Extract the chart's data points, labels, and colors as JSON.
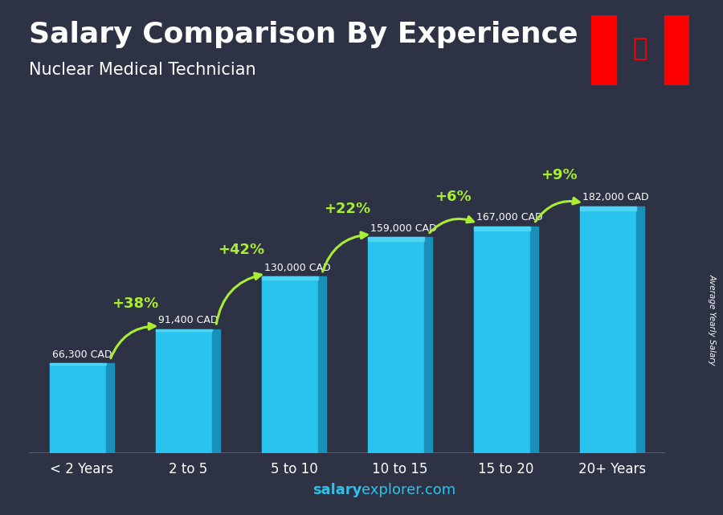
{
  "title": "Salary Comparison By Experience",
  "subtitle": "Nuclear Medical Technician",
  "categories": [
    "< 2 Years",
    "2 to 5",
    "5 to 10",
    "10 to 15",
    "15 to 20",
    "20+ Years"
  ],
  "values": [
    66300,
    91400,
    130000,
    159000,
    167000,
    182000
  ],
  "labels": [
    "66,300 CAD",
    "91,400 CAD",
    "130,000 CAD",
    "159,000 CAD",
    "167,000 CAD",
    "182,000 CAD"
  ],
  "pct_changes": [
    "+38%",
    "+42%",
    "+22%",
    "+6%",
    "+9%"
  ],
  "bar_color_main": "#29c4ed",
  "bar_color_dark": "#1890b8",
  "bar_color_top": "#55d8f8",
  "pct_color": "#aaee33",
  "label_color": "#ffffff",
  "bg_color": "#2e3245",
  "footer_bold": "salary",
  "footer_normal": "explorer.com",
  "ylabel_text": "Average Yearly Salary",
  "ylim": [
    0,
    220000
  ],
  "title_fontsize": 26,
  "subtitle_fontsize": 15,
  "tick_fontsize": 12,
  "label_fontsize": 9,
  "pct_fontsize": 13
}
